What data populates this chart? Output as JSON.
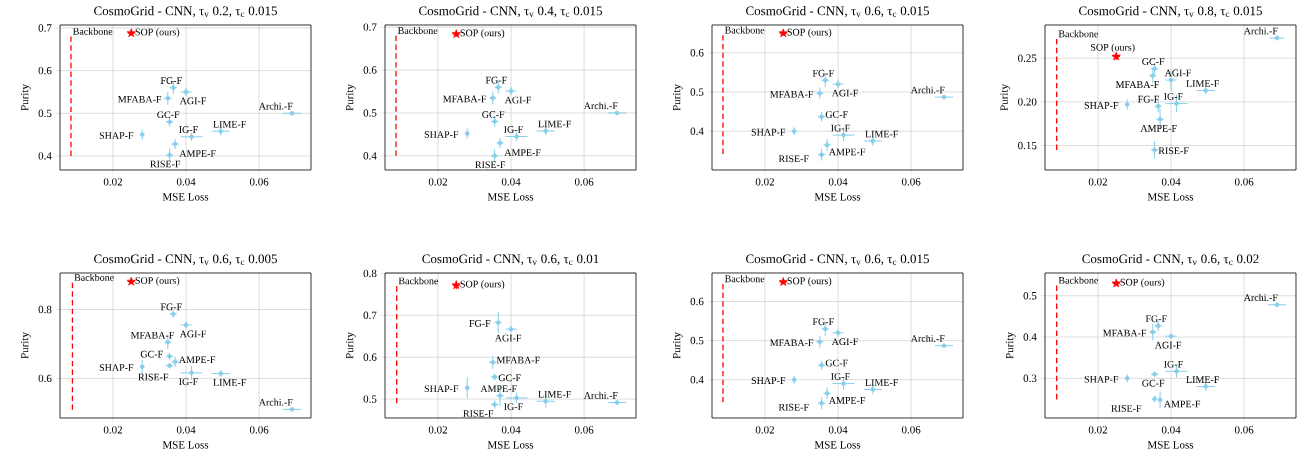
{
  "chart_data": [
    {
      "type": "scatter",
      "title": "CosmoGrid - CNN, τ$_{v}$ 0.2, τ$_{c}$ 0.015",
      "xlabel": "MSE Loss",
      "ylabel": "Purity",
      "grid": true,
      "xlim": [
        0.0055,
        0.0742
      ],
      "xticks": [
        0.02,
        0.04,
        0.06
      ],
      "ylim": [
        0.367,
        0.707
      ],
      "yticks": [
        0.4,
        0.5,
        0.6,
        0.7
      ],
      "series": [
        {
          "name": "Backbone",
          "type": "line",
          "color": "#ff0000",
          "line_style": "dashed",
          "marker": "none",
          "x": [
            0.0085,
            0.0085
          ],
          "values": [
            0.4,
            0.68
          ]
        },
        {
          "name": "SOP (ours)",
          "color": "#ff0000",
          "marker": "star",
          "x": [
            0.025
          ],
          "values": [
            0.688
          ],
          "errors": [
            0.006
          ],
          "xerrors": [
            0.001
          ]
        },
        {
          "name": "FG-F",
          "color": "#87ceeb",
          "marker": "circle",
          "x": [
            0.0365
          ],
          "values": [
            0.56
          ],
          "errors": [
            0.015
          ],
          "xerrors": [
            0.001
          ]
        },
        {
          "name": "MFABA-F",
          "color": "#87ceeb",
          "marker": "circle",
          "x": [
            0.035
          ],
          "values": [
            0.535
          ],
          "errors": [
            0.015
          ],
          "xerrors": [
            0.001
          ]
        },
        {
          "name": "AGI-F",
          "color": "#87ceeb",
          "marker": "circle",
          "x": [
            0.04
          ],
          "values": [
            0.55
          ],
          "errors": [
            0.01
          ],
          "xerrors": [
            0.0015
          ]
        },
        {
          "name": "GC-F",
          "color": "#87ceeb",
          "marker": "circle",
          "x": [
            0.0355
          ],
          "values": [
            0.48
          ],
          "errors": [
            0.012
          ],
          "xerrors": [
            0.001
          ]
        },
        {
          "name": "AMPE-F",
          "color": "#87ceeb",
          "marker": "circle",
          "x": [
            0.037
          ],
          "values": [
            0.428
          ],
          "errors": [
            0.012
          ],
          "xerrors": [
            0.001
          ]
        },
        {
          "name": "SHAP-F",
          "color": "#87ceeb",
          "marker": "circle",
          "x": [
            0.028
          ],
          "values": [
            0.45
          ],
          "errors": [
            0.012
          ],
          "xerrors": [
            0.0005
          ]
        },
        {
          "name": "IG-F",
          "color": "#87ceeb",
          "marker": "circle",
          "x": [
            0.0415
          ],
          "values": [
            0.445
          ],
          "errors": [
            0.01
          ],
          "xerrors": [
            0.003
          ]
        },
        {
          "name": "LIME-F",
          "color": "#87ceeb",
          "marker": "circle",
          "x": [
            0.0495
          ],
          "values": [
            0.458
          ],
          "errors": [
            0.01
          ],
          "xerrors": [
            0.0025
          ]
        },
        {
          "name": "RISE-F",
          "color": "#87ceeb",
          "marker": "circle",
          "x": [
            0.0355
          ],
          "values": [
            0.402
          ],
          "errors": [
            0.015
          ],
          "xerrors": [
            0.001
          ]
        },
        {
          "name": "Archi.-F",
          "color": "#87ceeb",
          "marker": "circle",
          "x": [
            0.069
          ],
          "values": [
            0.5
          ],
          "errors": [
            null
          ],
          "xerrors": [
            0.0025
          ]
        }
      ]
    },
    {
      "type": "scatter",
      "title": "CosmoGrid - CNN, τ$_{v}$ 0.4, τ$_{c}$ 0.015",
      "xlabel": "MSE Loss",
      "ylabel": "Purity",
      "grid": true,
      "xlim": [
        0.0055,
        0.0742
      ],
      "xticks": [
        0.02,
        0.04,
        0.06
      ],
      "ylim": [
        0.367,
        0.705
      ],
      "yticks": [
        0.4,
        0.5,
        0.6,
        0.7
      ],
      "series": [
        {
          "name": "Backbone",
          "type": "line",
          "color": "#ff0000",
          "line_style": "dashed",
          "marker": "none",
          "x": [
            0.0085,
            0.0085
          ],
          "values": [
            0.4,
            0.68
          ]
        },
        {
          "name": "SOP (ours)",
          "color": "#ff0000",
          "marker": "star",
          "x": [
            0.025
          ],
          "values": [
            0.684
          ],
          "errors": [
            0.006
          ],
          "xerrors": [
            0.001
          ]
        },
        {
          "name": "FG-F",
          "color": "#87ceeb",
          "marker": "circle",
          "x": [
            0.0365
          ],
          "values": [
            0.56
          ],
          "errors": [
            0.015
          ],
          "xerrors": [
            0.001
          ]
        },
        {
          "name": "MFABA-F",
          "color": "#87ceeb",
          "marker": "circle",
          "x": [
            0.035
          ],
          "values": [
            0.535
          ],
          "errors": [
            0.015
          ],
          "xerrors": [
            0.001
          ]
        },
        {
          "name": "AGI-F",
          "color": "#87ceeb",
          "marker": "circle",
          "x": [
            0.04
          ],
          "values": [
            0.551
          ],
          "errors": [
            0.01
          ],
          "xerrors": [
            0.0015
          ]
        },
        {
          "name": "GC-F",
          "color": "#87ceeb",
          "marker": "circle",
          "x": [
            0.0355
          ],
          "values": [
            0.48
          ],
          "errors": [
            0.012
          ],
          "xerrors": [
            0.001
          ]
        },
        {
          "name": "AMPE-F",
          "color": "#87ceeb",
          "marker": "circle",
          "x": [
            0.037
          ],
          "values": [
            0.43
          ],
          "errors": [
            0.012
          ],
          "xerrors": [
            0.001
          ]
        },
        {
          "name": "SHAP-F",
          "color": "#87ceeb",
          "marker": "circle",
          "x": [
            0.028
          ],
          "values": [
            0.452
          ],
          "errors": [
            0.012
          ],
          "xerrors": [
            0.0005
          ]
        },
        {
          "name": "IG-F",
          "color": "#87ceeb",
          "marker": "circle",
          "x": [
            0.0415
          ],
          "values": [
            0.445
          ],
          "errors": [
            0.01
          ],
          "xerrors": [
            0.003
          ]
        },
        {
          "name": "LIME-F",
          "color": "#87ceeb",
          "marker": "circle",
          "x": [
            0.0495
          ],
          "values": [
            0.458
          ],
          "errors": [
            0.01
          ],
          "xerrors": [
            0.0025
          ]
        },
        {
          "name": "RISE-F",
          "color": "#87ceeb",
          "marker": "circle",
          "x": [
            0.0355
          ],
          "values": [
            0.4
          ],
          "errors": [
            0.015
          ],
          "xerrors": [
            0.001
          ]
        },
        {
          "name": "Archi.-F",
          "color": "#87ceeb",
          "marker": "circle",
          "x": [
            0.069
          ],
          "values": [
            0.5
          ],
          "errors": [
            null
          ],
          "xerrors": [
            0.0025
          ]
        }
      ]
    },
    {
      "type": "scatter",
      "title": "CosmoGrid - CNN, τ$_{v}$ 0.6, τ$_{c}$ 0.015",
      "xlabel": "MSE Loss",
      "ylabel": "Purity",
      "grid": true,
      "xlim": [
        0.0055,
        0.0742
      ],
      "xticks": [
        0.02,
        0.04,
        0.06
      ],
      "ylim": [
        0.301,
        0.671
      ],
      "yticks": [
        0.4,
        0.5,
        0.6
      ],
      "series": [
        {
          "name": "Backbone",
          "type": "line",
          "color": "#ff0000",
          "line_style": "dashed",
          "marker": "none",
          "x": [
            0.0085,
            0.0085
          ],
          "values": [
            0.342,
            0.645
          ]
        },
        {
          "name": "SOP (ours)",
          "color": "#ff0000",
          "marker": "star",
          "x": [
            0.025
          ],
          "values": [
            0.65
          ],
          "errors": [
            0.006
          ],
          "xerrors": [
            0.001
          ]
        },
        {
          "name": "FG-F",
          "color": "#87ceeb",
          "marker": "circle",
          "x": [
            0.0365
          ],
          "values": [
            0.53
          ],
          "errors": [
            0.018
          ],
          "xerrors": [
            0.001
          ]
        },
        {
          "name": "MFABA-F",
          "color": "#87ceeb",
          "marker": "circle",
          "x": [
            0.035
          ],
          "values": [
            0.497
          ],
          "errors": [
            0.015
          ],
          "xerrors": [
            0.001
          ]
        },
        {
          "name": "AGI-F",
          "color": "#87ceeb",
          "marker": "circle",
          "x": [
            0.04
          ],
          "values": [
            0.52
          ],
          "errors": [
            0.01
          ],
          "xerrors": [
            0.0015
          ]
        },
        {
          "name": "GC-F",
          "color": "#87ceeb",
          "marker": "circle",
          "x": [
            0.0355
          ],
          "values": [
            0.437
          ],
          "errors": [
            0.012
          ],
          "xerrors": [
            0.001
          ]
        },
        {
          "name": "AMPE-F",
          "color": "#87ceeb",
          "marker": "circle",
          "x": [
            0.037
          ],
          "values": [
            0.365
          ],
          "errors": [
            0.015
          ],
          "xerrors": [
            0.001
          ]
        },
        {
          "name": "SHAP-F",
          "color": "#87ceeb",
          "marker": "circle",
          "x": [
            0.028
          ],
          "values": [
            0.4
          ],
          "errors": [
            0.01
          ],
          "xerrors": [
            0.0005
          ]
        },
        {
          "name": "IG-F",
          "color": "#87ceeb",
          "marker": "circle",
          "x": [
            0.0415
          ],
          "values": [
            0.39
          ],
          "errors": [
            0.015
          ],
          "xerrors": [
            0.003
          ]
        },
        {
          "name": "LIME-F",
          "color": "#87ceeb",
          "marker": "circle",
          "x": [
            0.0495
          ],
          "values": [
            0.375
          ],
          "errors": [
            0.012
          ],
          "xerrors": [
            0.0025
          ]
        },
        {
          "name": "RISE-F",
          "color": "#87ceeb",
          "marker": "circle",
          "x": [
            0.0355
          ],
          "values": [
            0.34
          ],
          "errors": [
            0.015
          ],
          "xerrors": [
            0.001
          ]
        },
        {
          "name": "Archi.-F",
          "color": "#87ceeb",
          "marker": "circle",
          "x": [
            0.069
          ],
          "values": [
            0.487
          ],
          "errors": [
            null
          ],
          "xerrors": [
            0.0025
          ]
        }
      ]
    },
    {
      "type": "scatter",
      "title": "CosmoGrid - CNN, τ$_{v}$ 0.8, τ$_{c}$ 0.015",
      "xlabel": "MSE Loss",
      "ylabel": "Purity",
      "grid": true,
      "xlim": [
        0.0055,
        0.0742
      ],
      "xticks": [
        0.02,
        0.04,
        0.06
      ],
      "ylim": [
        0.122,
        0.288
      ],
      "yticks": [
        0.15,
        {
          "value": 0.2,
          "label": "0.20"
        },
        0.25
      ],
      "series": [
        {
          "name": "Backbone",
          "type": "line",
          "color": "#ff0000",
          "line_style": "dashed",
          "marker": "none",
          "x": [
            0.0087,
            0.0087
          ],
          "values": [
            0.145,
            0.272
          ]
        },
        {
          "name": "SOP (ours)",
          "color": "#ff0000",
          "marker": "star",
          "x": [
            0.025
          ],
          "values": [
            0.252
          ],
          "errors": [
            0.004
          ],
          "xerrors": [
            0.001
          ]
        },
        {
          "name": "FG-F",
          "color": "#87ceeb",
          "marker": "circle",
          "x": [
            0.0365
          ],
          "values": [
            0.195
          ],
          "errors": [
            0.007
          ],
          "xerrors": [
            0.001
          ]
        },
        {
          "name": "MFABA-F",
          "color": "#87ceeb",
          "marker": "circle",
          "x": [
            0.035
          ],
          "values": [
            0.23
          ],
          "errors": [
            0.008
          ],
          "xerrors": [
            0.001
          ]
        },
        {
          "name": "AGI-F",
          "color": "#87ceeb",
          "marker": "circle",
          "x": [
            0.04
          ],
          "values": [
            0.225
          ],
          "errors": [
            0.012
          ],
          "xerrors": [
            0.0015
          ]
        },
        {
          "name": "GC-F",
          "color": "#87ceeb",
          "marker": "circle",
          "x": [
            0.0355
          ],
          "values": [
            0.238
          ],
          "errors": [
            0.006
          ],
          "xerrors": [
            0.001
          ]
        },
        {
          "name": "AMPE-F",
          "color": "#87ceeb",
          "marker": "circle",
          "x": [
            0.037
          ],
          "values": [
            0.18
          ],
          "errors": [
            0.012
          ],
          "xerrors": [
            0.001
          ]
        },
        {
          "name": "SHAP-F",
          "color": "#87ceeb",
          "marker": "circle",
          "x": [
            0.028
          ],
          "values": [
            0.197
          ],
          "errors": [
            0.006
          ],
          "xerrors": [
            0.0005
          ]
        },
        {
          "name": "IG-F",
          "color": "#87ceeb",
          "marker": "circle",
          "x": [
            0.0415
          ],
          "values": [
            0.198
          ],
          "errors": [
            0.01
          ],
          "xerrors": [
            0.003
          ]
        },
        {
          "name": "LIME-F",
          "color": "#87ceeb",
          "marker": "circle",
          "x": [
            0.0495
          ],
          "values": [
            0.213
          ],
          "errors": [
            0.004
          ],
          "xerrors": [
            0.0025
          ]
        },
        {
          "name": "RISE-F",
          "color": "#87ceeb",
          "marker": "circle",
          "x": [
            0.0355
          ],
          "values": [
            0.145
          ],
          "errors": [
            0.01
          ],
          "xerrors": [
            0.001
          ]
        },
        {
          "name": "Archi.-F",
          "color": "#87ceeb",
          "marker": "circle",
          "x": [
            0.069
          ],
          "values": [
            0.273
          ],
          "errors": [
            0.002
          ],
          "xerrors": [
            0.002
          ]
        }
      ]
    },
    {
      "type": "scatter",
      "title": "CosmoGrid - CNN, τ$_{v}$ 0.6, τ$_{c}$ 0.005",
      "xlabel": "MSE Loss",
      "ylabel": "Purity",
      "grid": true,
      "xlim": [
        0.0055,
        0.0742
      ],
      "xticks": [
        0.02,
        0.04,
        0.06
      ],
      "ylim": [
        0.485,
        0.906
      ],
      "yticks": [
        0.6,
        0.8
      ],
      "series": [
        {
          "name": "Backbone",
          "type": "line",
          "color": "#ff0000",
          "line_style": "dashed",
          "marker": "none",
          "x": [
            0.0089,
            0.0089
          ],
          "values": [
            0.509,
            0.878
          ]
        },
        {
          "name": "SOP (ours)",
          "color": "#ff0000",
          "marker": "star",
          "x": [
            0.025
          ],
          "values": [
            0.881
          ],
          "errors": [
            0.006
          ],
          "xerrors": [
            0.001
          ]
        },
        {
          "name": "FG-F",
          "color": "#87ceeb",
          "marker": "circle",
          "x": [
            0.0365
          ],
          "values": [
            0.787
          ],
          "errors": [
            0.01
          ],
          "xerrors": [
            0.001
          ]
        },
        {
          "name": "MFABA-F",
          "color": "#87ceeb",
          "marker": "circle",
          "x": [
            0.035
          ],
          "values": [
            0.705
          ],
          "errors": [
            0.02
          ],
          "xerrors": [
            0.001
          ]
        },
        {
          "name": "AGI-F",
          "color": "#87ceeb",
          "marker": "circle",
          "x": [
            0.04
          ],
          "values": [
            0.755
          ],
          "errors": [
            0.01
          ],
          "xerrors": [
            0.0015
          ]
        },
        {
          "name": "GC-F",
          "color": "#87ceeb",
          "marker": "circle",
          "x": [
            0.0355
          ],
          "values": [
            0.664
          ],
          "errors": [
            0.01
          ],
          "xerrors": [
            0.001
          ]
        },
        {
          "name": "AMPE-F",
          "color": "#87ceeb",
          "marker": "circle",
          "x": [
            0.037
          ],
          "values": [
            0.648
          ],
          "errors": [
            0.015
          ],
          "xerrors": [
            0.001
          ]
        },
        {
          "name": "SHAP-F",
          "color": "#87ceeb",
          "marker": "circle",
          "x": [
            0.028
          ],
          "values": [
            0.634
          ],
          "errors": [
            0.02
          ],
          "xerrors": [
            0.0005
          ]
        },
        {
          "name": "IG-F",
          "color": "#87ceeb",
          "marker": "circle",
          "x": [
            0.0415
          ],
          "values": [
            0.616
          ],
          "errors": [
            0.02
          ],
          "xerrors": [
            0.003
          ]
        },
        {
          "name": "LIME-F",
          "color": "#87ceeb",
          "marker": "circle",
          "x": [
            0.0495
          ],
          "values": [
            0.614
          ],
          "errors": [
            0.01
          ],
          "xerrors": [
            0.0025
          ]
        },
        {
          "name": "RISE-F",
          "color": "#87ceeb",
          "marker": "circle",
          "x": [
            0.0355
          ],
          "values": [
            0.637
          ],
          "errors": [
            0.008
          ],
          "xerrors": [
            0.001
          ]
        },
        {
          "name": "Archi.-F",
          "color": "#87ceeb",
          "marker": "circle",
          "x": [
            0.069
          ],
          "values": [
            0.51
          ],
          "errors": [
            null
          ],
          "xerrors": [
            0.0025
          ]
        }
      ]
    },
    {
      "type": "scatter",
      "title": "CosmoGrid - CNN, τ$_{v}$ 0.6, τ$_{c}$ 0.01",
      "xlabel": "MSE Loss",
      "ylabel": "Purity",
      "grid": true,
      "xlim": [
        0.0055,
        0.0742
      ],
      "xticks": [
        0.02,
        0.04,
        0.06
      ],
      "ylim": [
        0.455,
        0.801
      ],
      "yticks": [
        0.5,
        0.6,
        0.7,
        0.8
      ],
      "series": [
        {
          "name": "Backbone",
          "type": "line",
          "color": "#ff0000",
          "line_style": "dashed",
          "marker": "none",
          "x": [
            0.0087,
            0.0087
          ],
          "values": [
            0.49,
            0.77
          ]
        },
        {
          "name": "SOP (ours)",
          "color": "#ff0000",
          "marker": "star",
          "x": [
            0.025
          ],
          "values": [
            0.772
          ],
          "errors": [
            0.01
          ],
          "xerrors": [
            0.001
          ]
        },
        {
          "name": "FG-F",
          "color": "#87ceeb",
          "marker": "circle",
          "x": [
            0.0365
          ],
          "values": [
            0.683
          ],
          "errors": [
            0.025
          ],
          "xerrors": [
            0.001
          ]
        },
        {
          "name": "MFABA-F",
          "color": "#87ceeb",
          "marker": "circle",
          "x": [
            0.035
          ],
          "values": [
            0.588
          ],
          "errors": [
            0.015
          ],
          "xerrors": [
            0.001
          ]
        },
        {
          "name": "AGI-F",
          "color": "#87ceeb",
          "marker": "circle",
          "x": [
            0.04
          ],
          "values": [
            0.667
          ],
          "errors": [
            0.008
          ],
          "xerrors": [
            0.0015
          ]
        },
        {
          "name": "GC-F",
          "color": "#87ceeb",
          "marker": "circle",
          "x": [
            0.0355
          ],
          "values": [
            0.553
          ],
          "errors": [
            0.008
          ],
          "xerrors": [
            0.001
          ]
        },
        {
          "name": "AMPE-F",
          "color": "#87ceeb",
          "marker": "circle",
          "x": [
            0.037
          ],
          "values": [
            0.508
          ],
          "errors": [
            0.025
          ],
          "xerrors": [
            0.001
          ]
        },
        {
          "name": "SHAP-F",
          "color": "#87ceeb",
          "marker": "circle",
          "x": [
            0.028
          ],
          "values": [
            0.527
          ],
          "errors": [
            0.025
          ],
          "xerrors": [
            0.0005
          ]
        },
        {
          "name": "IG-F",
          "color": "#87ceeb",
          "marker": "circle",
          "x": [
            0.0415
          ],
          "values": [
            0.503
          ],
          "errors": [
            0.012
          ],
          "xerrors": [
            0.003
          ]
        },
        {
          "name": "LIME-F",
          "color": "#87ceeb",
          "marker": "circle",
          "x": [
            0.0495
          ],
          "values": [
            0.495
          ],
          "errors": [
            0.015
          ],
          "xerrors": [
            0.0025
          ]
        },
        {
          "name": "RISE-F",
          "color": "#87ceeb",
          "marker": "circle",
          "x": [
            0.0355
          ],
          "values": [
            0.487
          ],
          "errors": [
            0.01
          ],
          "xerrors": [
            0.001
          ]
        },
        {
          "name": "Archi.-F",
          "color": "#87ceeb",
          "marker": "circle",
          "x": [
            0.069
          ],
          "values": [
            0.492
          ],
          "errors": [
            null
          ],
          "xerrors": [
            0.0025
          ]
        }
      ]
    },
    {
      "type": "scatter",
      "title": "CosmoGrid - CNN, τ$_{v}$ 0.6, τ$_{c}$ 0.015",
      "xlabel": "MSE Loss",
      "ylabel": "Purity",
      "grid": true,
      "xlim": [
        0.0055,
        0.0742
      ],
      "xticks": [
        0.02,
        0.04,
        0.06
      ],
      "ylim": [
        0.302,
        0.673
      ],
      "yticks": [
        0.4,
        0.5,
        0.6
      ],
      "series": [
        {
          "name": "Backbone",
          "type": "line",
          "color": "#ff0000",
          "line_style": "dashed",
          "marker": "none",
          "x": [
            0.0085,
            0.0085
          ],
          "values": [
            0.342,
            0.645
          ]
        },
        {
          "name": "SOP (ours)",
          "color": "#ff0000",
          "marker": "star",
          "x": [
            0.025
          ],
          "values": [
            0.65
          ],
          "errors": [
            0.006
          ],
          "xerrors": [
            0.001
          ]
        },
        {
          "name": "FG-F",
          "color": "#87ceeb",
          "marker": "circle",
          "x": [
            0.0365
          ],
          "values": [
            0.53
          ],
          "errors": [
            0.018
          ],
          "xerrors": [
            0.001
          ]
        },
        {
          "name": "MFABA-F",
          "color": "#87ceeb",
          "marker": "circle",
          "x": [
            0.035
          ],
          "values": [
            0.497
          ],
          "errors": [
            0.015
          ],
          "xerrors": [
            0.001
          ]
        },
        {
          "name": "AGI-F",
          "color": "#87ceeb",
          "marker": "circle",
          "x": [
            0.04
          ],
          "values": [
            0.52
          ],
          "errors": [
            0.01
          ],
          "xerrors": [
            0.0015
          ]
        },
        {
          "name": "GC-F",
          "color": "#87ceeb",
          "marker": "circle",
          "x": [
            0.0355
          ],
          "values": [
            0.437
          ],
          "errors": [
            0.012
          ],
          "xerrors": [
            0.001
          ]
        },
        {
          "name": "AMPE-F",
          "color": "#87ceeb",
          "marker": "circle",
          "x": [
            0.037
          ],
          "values": [
            0.365
          ],
          "errors": [
            0.015
          ],
          "xerrors": [
            0.001
          ]
        },
        {
          "name": "SHAP-F",
          "color": "#87ceeb",
          "marker": "circle",
          "x": [
            0.028
          ],
          "values": [
            0.4
          ],
          "errors": [
            0.01
          ],
          "xerrors": [
            0.0005
          ]
        },
        {
          "name": "IG-F",
          "color": "#87ceeb",
          "marker": "circle",
          "x": [
            0.0415
          ],
          "values": [
            0.39
          ],
          "errors": [
            0.015
          ],
          "xerrors": [
            0.003
          ]
        },
        {
          "name": "LIME-F",
          "color": "#87ceeb",
          "marker": "circle",
          "x": [
            0.0495
          ],
          "values": [
            0.375
          ],
          "errors": [
            0.012
          ],
          "xerrors": [
            0.0025
          ]
        },
        {
          "name": "RISE-F",
          "color": "#87ceeb",
          "marker": "circle",
          "x": [
            0.0355
          ],
          "values": [
            0.34
          ],
          "errors": [
            0.015
          ],
          "xerrors": [
            0.001
          ]
        },
        {
          "name": "Archi.-F",
          "color": "#87ceeb",
          "marker": "circle",
          "x": [
            0.069
          ],
          "values": [
            0.487
          ],
          "errors": [
            null
          ],
          "xerrors": [
            0.0025
          ]
        }
      ]
    },
    {
      "type": "scatter",
      "title": "CosmoGrid - CNN, τ$_{v}$ 0.6, τ$_{c}$ 0.02",
      "xlabel": "MSE Loss",
      "ylabel": "Purity",
      "grid": true,
      "xlim": [
        0.0055,
        0.0742
      ],
      "xticks": [
        0.02,
        0.04,
        0.06
      ],
      "ylim": [
        0.204,
        0.555
      ],
      "yticks": [
        0.3,
        0.4,
        0.5
      ],
      "series": [
        {
          "name": "Backbone",
          "type": "line",
          "color": "#ff0000",
          "line_style": "dashed",
          "marker": "none",
          "x": [
            0.0087,
            0.0087
          ],
          "values": [
            0.249,
            0.525
          ]
        },
        {
          "name": "SOP (ours)",
          "color": "#ff0000",
          "marker": "star",
          "x": [
            0.025
          ],
          "values": [
            0.53
          ],
          "errors": [
            0.006
          ],
          "xerrors": [
            0.001
          ]
        },
        {
          "name": "FG-F",
          "color": "#87ceeb",
          "marker": "circle",
          "x": [
            0.0365
          ],
          "values": [
            0.427
          ],
          "errors": [
            0.012
          ],
          "xerrors": [
            0.001
          ]
        },
        {
          "name": "MFABA-F",
          "color": "#87ceeb",
          "marker": "circle",
          "x": [
            0.035
          ],
          "values": [
            0.412
          ],
          "errors": [
            0.02
          ],
          "xerrors": [
            0.001
          ]
        },
        {
          "name": "AGI-F",
          "color": "#87ceeb",
          "marker": "circle",
          "x": [
            0.04
          ],
          "values": [
            0.402
          ],
          "errors": [
            0.005
          ],
          "xerrors": [
            0.0015
          ]
        },
        {
          "name": "GC-F",
          "color": "#87ceeb",
          "marker": "circle",
          "x": [
            0.0355
          ],
          "values": [
            0.31
          ],
          "errors": [
            0.006
          ],
          "xerrors": [
            0.001
          ]
        },
        {
          "name": "AMPE-F",
          "color": "#87ceeb",
          "marker": "circle",
          "x": [
            0.037
          ],
          "values": [
            0.248
          ],
          "errors": [
            0.02
          ],
          "xerrors": [
            0.0005
          ]
        },
        {
          "name": "SHAP-F",
          "color": "#87ceeb",
          "marker": "circle",
          "x": [
            0.028
          ],
          "values": [
            0.3
          ],
          "errors": [
            0.01
          ],
          "xerrors": [
            0.0005
          ]
        },
        {
          "name": "IG-F",
          "color": "#87ceeb",
          "marker": "circle",
          "x": [
            0.0415
          ],
          "values": [
            0.317
          ],
          "errors": [
            0.015
          ],
          "xerrors": [
            0.003
          ]
        },
        {
          "name": "LIME-F",
          "color": "#87ceeb",
          "marker": "circle",
          "x": [
            0.0495
          ],
          "values": [
            0.28
          ],
          "errors": [
            0.01
          ],
          "xerrors": [
            0.0025
          ]
        },
        {
          "name": "RISE-F",
          "color": "#87ceeb",
          "marker": "circle",
          "x": [
            0.0355
          ],
          "values": [
            0.25
          ],
          "errors": [
            0.008
          ],
          "xerrors": [
            0.0005
          ]
        },
        {
          "name": "Archi.-F",
          "color": "#87ceeb",
          "marker": "circle",
          "x": [
            0.069
          ],
          "values": [
            0.478
          ],
          "errors": [
            null
          ],
          "xerrors": [
            0.0025
          ]
        }
      ]
    }
  ]
}
